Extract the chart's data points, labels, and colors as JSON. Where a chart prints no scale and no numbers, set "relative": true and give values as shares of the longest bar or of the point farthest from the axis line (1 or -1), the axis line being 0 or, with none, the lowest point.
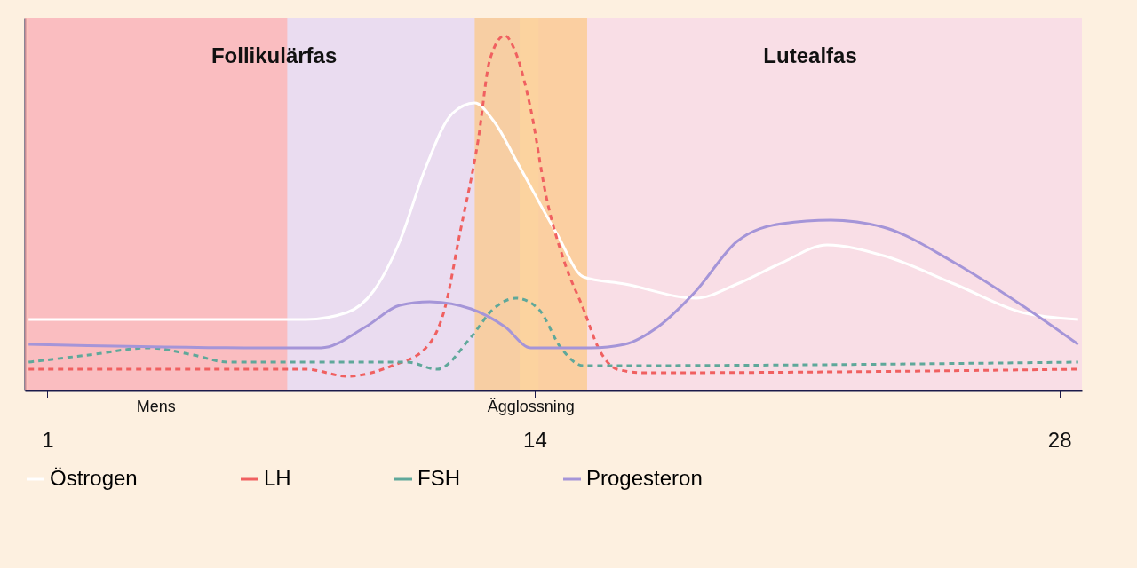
{
  "chart_data": {
    "type": "line",
    "relative": true,
    "xlim": [
      0.4,
      28.6
    ],
    "xticks": [
      1,
      14,
      28
    ],
    "grid": false,
    "legend": "bottom",
    "marker": "none",
    "bands": [
      {
        "axis": "x",
        "from": 0.5,
        "to": 13.6,
        "label": "Follikulärfas",
        "color": "#e3d5f5"
      },
      {
        "axis": "x",
        "from": 14.1,
        "to": 28.6,
        "label": "Lutealfas",
        "color": "#f7d8e8"
      },
      {
        "axis": "x",
        "from": 0.4,
        "to": 7.4,
        "label": "Mens",
        "color": "#ffb3b0"
      },
      {
        "axis": "x",
        "from": 12.4,
        "to": 15.4,
        "label": "Ägglossning",
        "color": "#fbc98a"
      }
    ],
    "series": [
      {
        "name": "Östrogen",
        "color": "#ffffff",
        "line_style": "solid",
        "x": [
          0.5,
          6.0,
          7.9,
          9.0,
          9.7,
          10.4,
          11.1,
          11.8,
          12.4,
          12.9,
          13.6,
          14.6,
          15.3,
          16.4,
          18.3,
          19.4,
          20.6,
          21.8,
          23.3,
          25.2,
          27.0,
          28.5
        ],
        "values": [
          0.2,
          0.2,
          0.2,
          0.22,
          0.28,
          0.42,
          0.63,
          0.78,
          0.81,
          0.76,
          0.63,
          0.44,
          0.32,
          0.3,
          0.26,
          0.3,
          0.36,
          0.41,
          0.38,
          0.3,
          0.22,
          0.2
        ]
      },
      {
        "name": "LH",
        "color": "#f06060",
        "line_style": "dashed",
        "x": [
          0.5,
          7.9,
          9.0,
          10.2,
          11.1,
          11.6,
          12.0,
          12.5,
          12.8,
          13.2,
          13.5,
          13.9,
          14.3,
          14.8,
          15.3,
          15.7,
          16.2,
          16.9,
          28.5
        ],
        "values": [
          0.06,
          0.06,
          0.04,
          0.07,
          0.12,
          0.23,
          0.44,
          0.71,
          0.93,
          1,
          0.95,
          0.79,
          0.55,
          0.36,
          0.23,
          0.12,
          0.06,
          0.05,
          0.06
        ]
      },
      {
        "name": "FSH",
        "color": "#5fa89a",
        "line_style": "dashed",
        "x": [
          0.5,
          2.1,
          3.7,
          4.9,
          5.8,
          9.0,
          10.6,
          11.4,
          12.3,
          12.9,
          13.5,
          14.1,
          14.7,
          15.3,
          15.9,
          28.5
        ],
        "values": [
          0.08,
          0.1,
          0.12,
          0.1,
          0.08,
          0.08,
          0.08,
          0.06,
          0.15,
          0.23,
          0.26,
          0.23,
          0.12,
          0.07,
          0.07,
          0.08
        ]
      },
      {
        "name": "Progesteron",
        "color": "#a595d8",
        "line_style": "solid",
        "x": [
          0.5,
          6.7,
          8.3,
          9.5,
          10.4,
          11.2,
          12.3,
          13.2,
          13.9,
          15.5,
          16.4,
          17.3,
          18.3,
          19.4,
          20.6,
          21.9,
          23.3,
          25.2,
          27.0,
          28.5
        ],
        "values": [
          0.13,
          0.12,
          0.12,
          0.18,
          0.24,
          0.25,
          0.23,
          0.18,
          0.12,
          0.12,
          0.13,
          0.18,
          0.28,
          0.42,
          0.47,
          0.48,
          0.46,
          0.36,
          0.24,
          0.13
        ]
      }
    ]
  }
}
